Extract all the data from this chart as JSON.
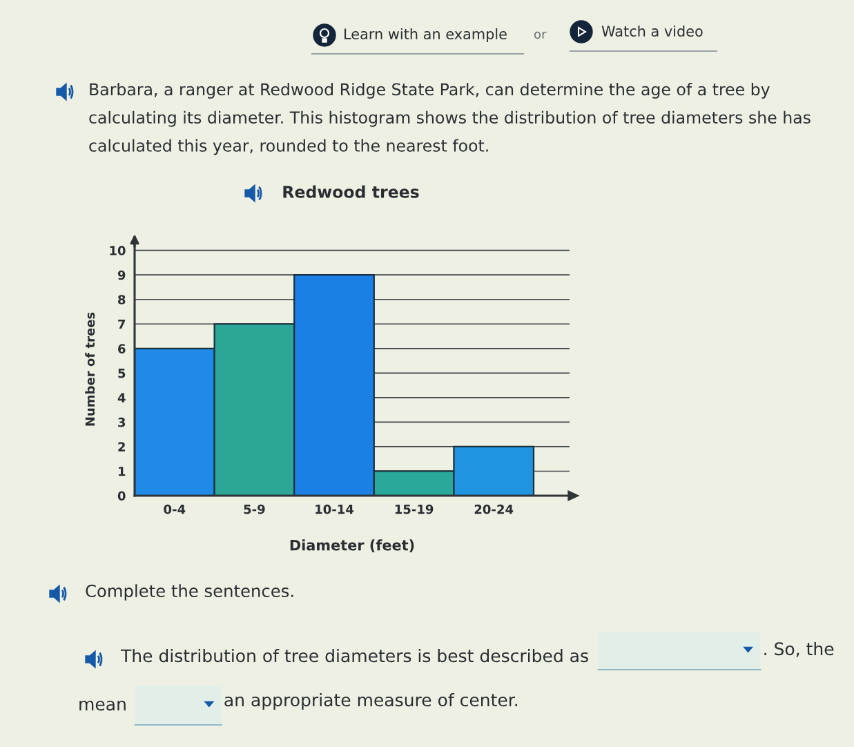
{
  "chart_data": {
    "type": "bar",
    "title": "Redwood trees",
    "xlabel": "Diameter (feet)",
    "ylabel": "Number of trees",
    "categories": [
      "0-4",
      "5-9",
      "10-14",
      "15-19",
      "20-24"
    ],
    "values": [
      6,
      7,
      9,
      1,
      2
    ],
    "colors": [
      "#1f8be6",
      "#2ba697",
      "#1a80e6",
      "#2aa89a",
      "#2094e0"
    ],
    "ylim": [
      0,
      10.3
    ],
    "yticks": [
      0,
      1,
      2,
      3,
      4,
      5,
      6,
      7,
      8,
      9,
      10
    ],
    "grid": "y",
    "annotations": [
      "Learn with an example",
      "or",
      "Watch a video",
      "Barbara, a ranger at Redwood Ridge State Park, can determine the age of a tree by calculating its diameter. This histogram shows the distribution of tree diameters she has calculated this year, rounded to the nearest foot.",
      "Complete the sentences.",
      "The distribution of tree diameters is best described as",
      ". So, the",
      "mean",
      "an appropriate measure of center."
    ]
  }
}
